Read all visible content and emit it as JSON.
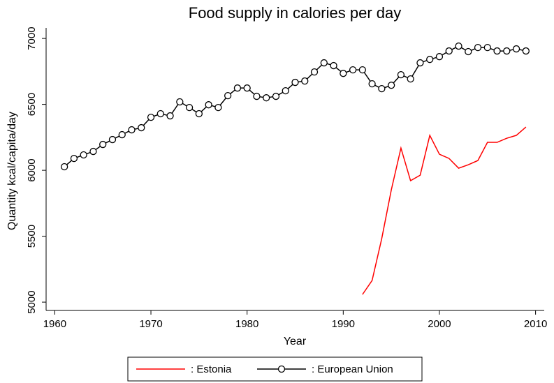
{
  "chart_data": {
    "type": "line",
    "title": "Food supply in calories per day",
    "xlabel": "Year",
    "ylabel": "Quantity kcal/capita/day",
    "xlim": [
      1959.1,
      2010.9
    ],
    "xticks": [
      1960,
      1970,
      1980,
      1990,
      2000,
      2010
    ],
    "ylim": [
      4937,
      7080
    ],
    "yticks": [
      5000,
      5500,
      6000,
      6500,
      7000
    ],
    "legend": "bottom",
    "series": [
      {
        "name": ": Estonia",
        "color": "#ff0000",
        "marker": "none",
        "x": [
          1992,
          1993,
          1994,
          1995,
          1996,
          1997,
          1998,
          1999,
          2000,
          2001,
          2002,
          2003,
          2004,
          2005,
          2006,
          2007,
          2008,
          2009
        ],
        "values": [
          5058,
          5164,
          5481,
          5852,
          6169,
          5921,
          5963,
          6265,
          6122,
          6090,
          6016,
          6042,
          6074,
          6212,
          6212,
          6243,
          6265,
          6328
        ]
      },
      {
        "name": ": European Union",
        "color": "#000000",
        "marker": "circle",
        "x": [
          1961,
          1962,
          1963,
          1964,
          1965,
          1966,
          1967,
          1968,
          1969,
          1970,
          1971,
          1972,
          1973,
          1974,
          1975,
          1976,
          1977,
          1978,
          1979,
          1980,
          1981,
          1982,
          1983,
          1984,
          1985,
          1986,
          1987,
          1988,
          1989,
          1990,
          1991,
          1992,
          1993,
          1994,
          1995,
          1996,
          1997,
          1998,
          1999,
          2000,
          2001,
          2002,
          2003,
          2004,
          2005,
          2006,
          2007,
          2008,
          2009
        ],
        "values": [
          6027,
          6090,
          6117,
          6143,
          6196,
          6233,
          6270,
          6307,
          6323,
          6402,
          6429,
          6413,
          6519,
          6476,
          6429,
          6497,
          6476,
          6566,
          6624,
          6624,
          6561,
          6550,
          6561,
          6603,
          6667,
          6677,
          6746,
          6815,
          6794,
          6735,
          6762,
          6762,
          6656,
          6619,
          6645,
          6725,
          6693,
          6815,
          6841,
          6862,
          6905,
          6942,
          6900,
          6931,
          6931,
          6905,
          6905,
          6921,
          6905
        ]
      }
    ]
  }
}
